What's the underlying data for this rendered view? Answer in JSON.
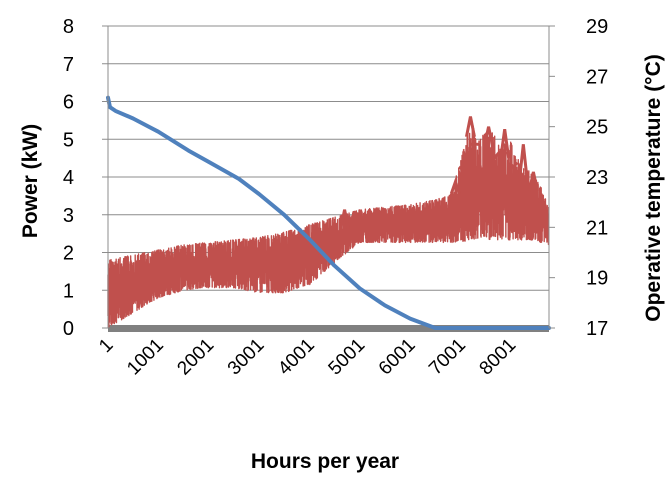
{
  "chart_data": {
    "type": "line",
    "xlabel": "Hours per year",
    "ylabel": "Power (kW)",
    "y2label": "Operative temperature (°C)",
    "x_ticks": [
      "1",
      "1001",
      "2001",
      "3001",
      "4001",
      "5001",
      "6001",
      "7001",
      "8001"
    ],
    "xlim": [
      1,
      8760
    ],
    "ylim": [
      0,
      8
    ],
    "y_ticks": [
      "0",
      "1",
      "2",
      "3",
      "4",
      "5",
      "6",
      "7",
      "8"
    ],
    "y2lim": [
      17,
      29
    ],
    "y2_ticks": [
      "17",
      "19",
      "21",
      "23",
      "25",
      "27",
      "29"
    ],
    "grid": true,
    "series": [
      {
        "axis": "left",
        "color": "#4f81bd",
        "x": [
          1,
          40,
          150,
          500,
          1001,
          1600,
          2001,
          2600,
          3001,
          3500,
          4001,
          4500,
          5001,
          5500,
          6001,
          6500,
          6800,
          7001,
          7500,
          8001,
          8500,
          8760
        ],
        "values": [
          6.1,
          5.85,
          5.75,
          5.55,
          5.2,
          4.7,
          4.4,
          3.95,
          3.55,
          3.0,
          2.35,
          1.65,
          1.05,
          0.6,
          0.25,
          0.0,
          0.0,
          0.0,
          0.0,
          0.0,
          0.0,
          0.0
        ]
      },
      {
        "axis": "right",
        "color": "#c0504d",
        "noisy": true,
        "x": [
          1,
          500,
          1001,
          1500,
          2001,
          2500,
          3001,
          3500,
          4001,
          4500,
          5001,
          5500,
          6001,
          6500,
          6800,
          7001,
          7200,
          7400,
          7600,
          7800,
          8001,
          8200,
          8400,
          8600,
          8760
        ],
        "lower": [
          17.0,
          17.6,
          18.2,
          18.5,
          18.6,
          18.6,
          18.4,
          18.4,
          18.7,
          19.6,
          20.4,
          20.4,
          20.4,
          20.4,
          20.4,
          20.4,
          20.5,
          20.6,
          20.5,
          20.5,
          20.5,
          20.5,
          20.5,
          20.4,
          20.3
        ],
        "upper": [
          19.7,
          19.9,
          20.1,
          20.3,
          20.4,
          20.5,
          20.6,
          20.8,
          21.1,
          21.4,
          21.7,
          21.8,
          21.9,
          22.1,
          22.3,
          23.6,
          25.2,
          24.6,
          24.9,
          24.3,
          24.4,
          23.5,
          23.2,
          22.6,
          21.8
        ],
        "peaks": [
          {
            "x": 7050,
            "value": 23.3
          },
          {
            "x": 7200,
            "value": 25.4
          },
          {
            "x": 7300,
            "value": 24.3
          },
          {
            "x": 7560,
            "value": 25.0
          },
          {
            "x": 7700,
            "value": 23.8
          },
          {
            "x": 7880,
            "value": 24.9
          },
          {
            "x": 8050,
            "value": 23.4
          },
          {
            "x": 8250,
            "value": 24.3
          },
          {
            "x": 8450,
            "value": 23.2
          },
          {
            "x": 6900,
            "value": 22.8
          },
          {
            "x": 4700,
            "value": 21.7
          }
        ]
      },
      {
        "axis": "left",
        "color": "#808080",
        "x": [
          1,
          8760
        ],
        "values": [
          0.0,
          0.0
        ]
      }
    ]
  }
}
